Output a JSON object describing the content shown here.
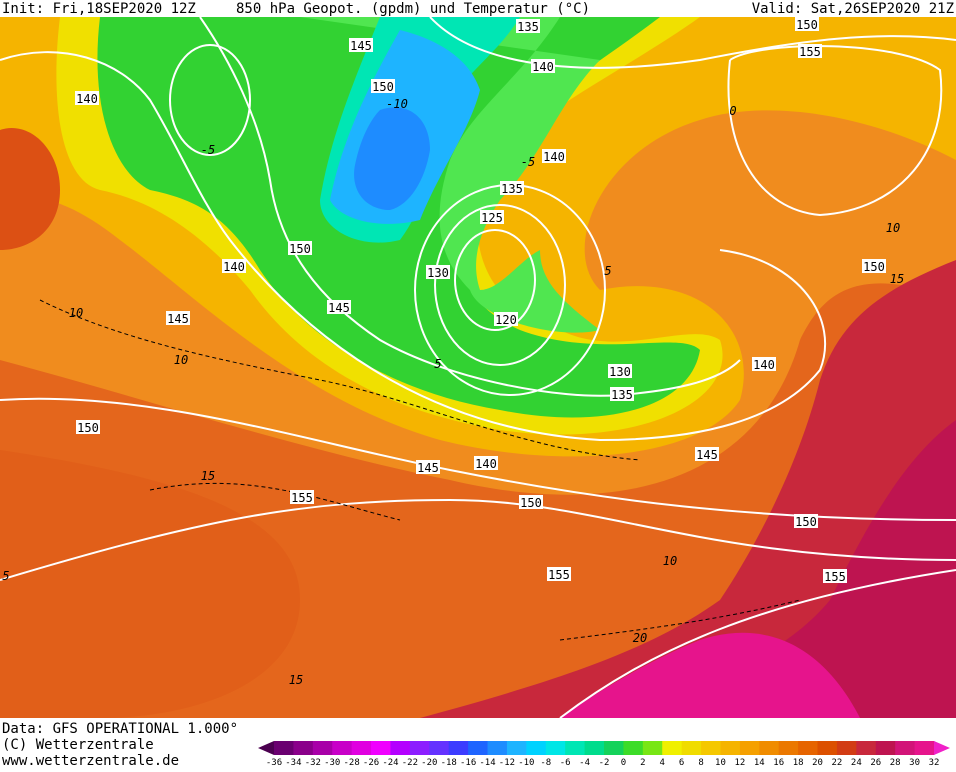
{
  "header": {
    "init": "Init: Fri,18SEP2020 12Z",
    "title": "850 hPa Geopot. (gpdm) und Temperatur (°C)",
    "valid": "Valid: Sat,26SEP2020 21Z"
  },
  "footer": {
    "data": "Data: GFS OPERATIONAL 1.000°",
    "copyright": "(C) Wetterzentrale",
    "url": "www.wetterzentrale.de"
  },
  "geopotential_labels": [
    140,
    145,
    135,
    140,
    150,
    155,
    150,
    140,
    135,
    125,
    150,
    140,
    130,
    145,
    145,
    120,
    130,
    135,
    140,
    150,
    150,
    145,
    140,
    145,
    155,
    150,
    150,
    155,
    155
  ],
  "temperature_labels": [
    -10,
    -5,
    0,
    5,
    5,
    10,
    10,
    10,
    10,
    15,
    15,
    15,
    20,
    5,
    -5
  ],
  "scale": {
    "labels": [
      -36,
      -34,
      -32,
      -30,
      -28,
      -26,
      -24,
      -22,
      -20,
      -18,
      -16,
      -14,
      -12,
      -10,
      -8,
      -6,
      -4,
      -2,
      0,
      2,
      4,
      6,
      8,
      10,
      12,
      14,
      16,
      18,
      20,
      22,
      24,
      26,
      28,
      30,
      32
    ],
    "colors": [
      "#4b0050",
      "#6a0070",
      "#8a008a",
      "#a800a8",
      "#c800c8",
      "#e000e0",
      "#f000ff",
      "#b400ff",
      "#8c1eff",
      "#6432ff",
      "#3c3cff",
      "#1e64ff",
      "#1e8cff",
      "#1eb4ff",
      "#00d2ff",
      "#00e6e6",
      "#00e6b4",
      "#00dc8c",
      "#14d25a",
      "#3cdc28",
      "#78e614",
      "#f0f000",
      "#f0dc00",
      "#f5c800",
      "#f5b400",
      "#f5a000",
      "#f08c00",
      "#eb7800",
      "#e66400",
      "#dc5000",
      "#d23c14",
      "#c8283c",
      "#be1450",
      "#d21478",
      "#e6148c",
      "#f020c8"
    ]
  }
}
